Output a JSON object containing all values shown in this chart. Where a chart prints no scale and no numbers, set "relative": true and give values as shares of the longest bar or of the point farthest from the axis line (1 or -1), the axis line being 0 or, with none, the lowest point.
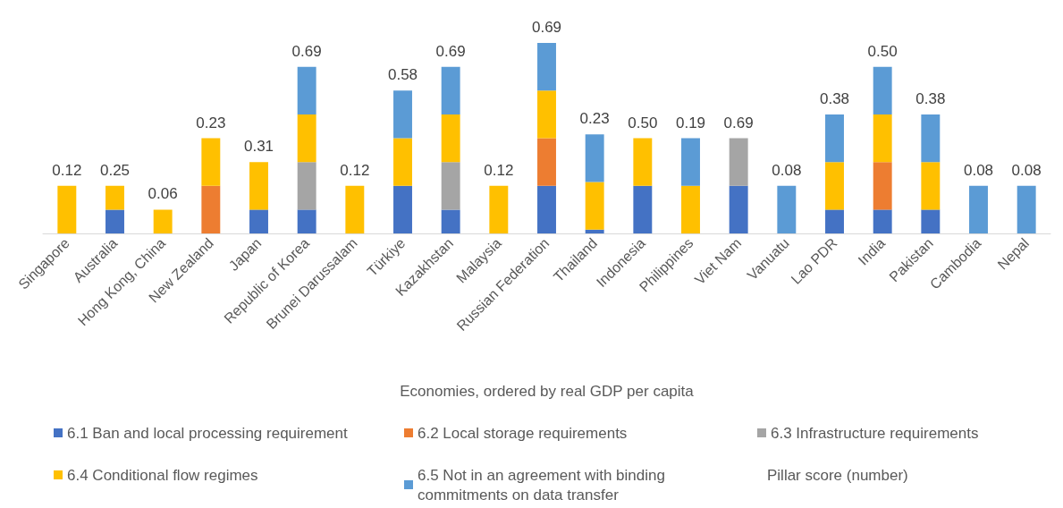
{
  "chart_data": {
    "type": "bar",
    "stacked": true,
    "relative": true,
    "legend": "bottom",
    "xlabel": "Economies, ordered by real GDP per capita",
    "legend_title": "Pillar score (number)",
    "categories": [
      "Singapore",
      "Australia",
      "Hong Kong, China",
      "New Zealand",
      "Japan",
      "Republic of Korea",
      "Brunei Darussalam",
      "Türkiye",
      "Kazakhstan",
      "Malaysia",
      "Russian Federation",
      "Thailand",
      "Indonesia",
      "Philippines",
      "Viet Nam",
      "Vanuatu",
      "Lao PDR",
      "India",
      "Pakistan",
      "Cambodia",
      "Nepal"
    ],
    "series": [
      {
        "name": "6.1 Ban and local processing requirement",
        "color": "#4472c4",
        "values": [
          null,
          0.125,
          null,
          null,
          0.125,
          0.125,
          null,
          0.25,
          0.125,
          null,
          0.25,
          0.02,
          0.25,
          null,
          0.25,
          null,
          0.125,
          0.125,
          0.125,
          null,
          null
        ]
      },
      {
        "name": "6.2 Local storage requirements",
        "color": "#ed7d31",
        "values": [
          null,
          null,
          null,
          0.25,
          null,
          null,
          null,
          null,
          null,
          null,
          0.25,
          null,
          null,
          null,
          null,
          null,
          null,
          0.25,
          null,
          null,
          null
        ]
      },
      {
        "name": "6.3 Infrastructure requirements",
        "color": "#a5a5a5",
        "values": [
          null,
          null,
          null,
          null,
          null,
          0.25,
          null,
          null,
          0.25,
          null,
          null,
          null,
          null,
          null,
          0.25,
          null,
          null,
          null,
          null,
          null,
          null
        ]
      },
      {
        "name": "6.4 Conditional flow regimes",
        "color": "#ffc000",
        "values": [
          0.25,
          0.125,
          0.125,
          0.25,
          0.25,
          0.25,
          0.25,
          0.25,
          0.25,
          0.25,
          0.25,
          0.25,
          0.25,
          0.25,
          null,
          null,
          0.25,
          0.25,
          0.25,
          null,
          null
        ]
      },
      {
        "name": "6.5 Not in an agreement with binding commitments on data transfer",
        "color": "#5b9bd5",
        "values": [
          null,
          null,
          null,
          null,
          null,
          0.25,
          null,
          0.25,
          0.25,
          null,
          0.25,
          0.25,
          null,
          0.25,
          null,
          0.25,
          0.25,
          0.25,
          0.25,
          0.25,
          0.25
        ]
      }
    ],
    "annotations": [
      {
        "text": "0.12",
        "x": "Singapore",
        "y": 0.25
      },
      {
        "text": "0.25",
        "x": "Australia",
        "y": 0.25
      },
      {
        "text": "0.06",
        "x": "Hong Kong, China",
        "y": 0.125
      },
      {
        "text": "0.23",
        "x": "New Zealand",
        "y": 0.5
      },
      {
        "text": "0.31",
        "x": "Japan",
        "y": 0.375
      },
      {
        "text": "0.69",
        "x": "Republic of Korea",
        "y": 0.875
      },
      {
        "text": "0.12",
        "x": "Brunei Darussalam",
        "y": 0.25
      },
      {
        "text": "0.58",
        "x": "Türkiye",
        "y": 0.75
      },
      {
        "text": "0.69",
        "x": "Kazakhstan",
        "y": 0.875
      },
      {
        "text": "0.12",
        "x": "Malaysia",
        "y": 0.25
      },
      {
        "text": "0.69",
        "x": "Russian Federation",
        "y": 1
      },
      {
        "text": "0.23",
        "x": "Thailand",
        "y": 0.52
      },
      {
        "text": "0.50",
        "x": "Indonesia",
        "y": 0.5
      },
      {
        "text": "0.19",
        "x": "Philippines",
        "y": 0.5
      },
      {
        "text": "0.69",
        "x": "Viet Nam",
        "y": 0.5
      },
      {
        "text": "0.08",
        "x": "Vanuatu",
        "y": 0.25
      },
      {
        "text": "0.38",
        "x": "Lao PDR",
        "y": 0.625
      },
      {
        "text": "0.50",
        "x": "India",
        "y": 0.875
      },
      {
        "text": "0.38",
        "x": "Pakistan",
        "y": 0.625
      },
      {
        "text": "0.08",
        "x": "Cambodia",
        "y": 0.25
      },
      {
        "text": "0.08",
        "x": "Nepal",
        "y": 0.25
      }
    ]
  }
}
